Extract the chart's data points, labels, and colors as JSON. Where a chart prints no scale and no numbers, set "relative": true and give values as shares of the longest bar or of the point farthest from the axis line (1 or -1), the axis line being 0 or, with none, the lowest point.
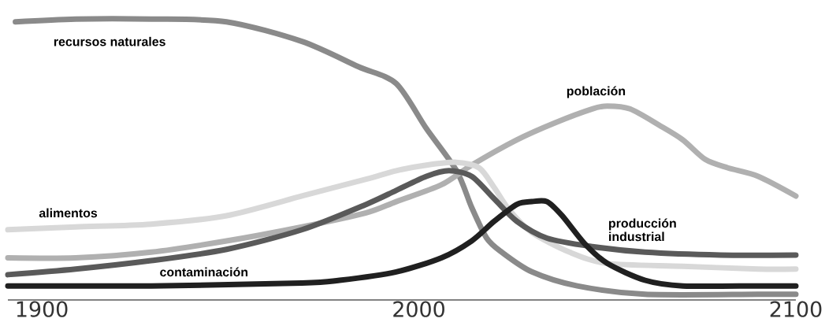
{
  "chart_data": {
    "type": "line",
    "relative": true,
    "xlim": [
      1891,
      2100
    ],
    "xticks": [
      1900,
      2000,
      2100
    ],
    "series": [
      {
        "name": "recursos naturales",
        "color": "#8a8a8a",
        "x": [
          1893,
          1909,
          1929,
          1949,
          1969,
          1984,
          1994,
          2002,
          2010,
          2014,
          2018,
          2022,
          2030,
          2042,
          2060,
          2090,
          2100
        ],
        "values": [
          0.99,
          1.0,
          1.0,
          0.99,
          0.92,
          0.83,
          0.77,
          0.61,
          0.46,
          0.33,
          0.22,
          0.17,
          0.1,
          0.05,
          0.02,
          0.02,
          0.02
        ]
      },
      {
        "name": "población",
        "color": "#b0b0b0",
        "x": [
          1891,
          1909,
          1929,
          1949,
          1969,
          1986,
          1994,
          2006,
          2014,
          2026,
          2036,
          2046,
          2050,
          2056,
          2064,
          2070,
          2076,
          2082,
          2090,
          2100
        ],
        "values": [
          0.15,
          0.15,
          0.17,
          0.21,
          0.26,
          0.31,
          0.35,
          0.41,
          0.48,
          0.57,
          0.63,
          0.68,
          0.69,
          0.68,
          0.62,
          0.57,
          0.5,
          0.47,
          0.44,
          0.37
        ]
      },
      {
        "name": "alimentos",
        "color": "#d8d8d8",
        "x": [
          1891,
          1909,
          1929,
          1949,
          1969,
          1986,
          1994,
          2002,
          2010,
          2016,
          2020,
          2024,
          2030,
          2040,
          2050,
          2070,
          2090,
          2100
        ],
        "values": [
          0.25,
          0.26,
          0.27,
          0.3,
          0.37,
          0.43,
          0.46,
          0.48,
          0.49,
          0.47,
          0.4,
          0.32,
          0.24,
          0.17,
          0.13,
          0.12,
          0.11,
          0.11
        ]
      },
      {
        "name": "producción industrial",
        "color": "#5a5a5a",
        "x": [
          1891,
          1909,
          1929,
          1949,
          1969,
          1986,
          1994,
          2002,
          2008,
          2014,
          2020,
          2026,
          2034,
          2046,
          2060,
          2080,
          2100
        ],
        "values": [
          0.09,
          0.11,
          0.14,
          0.18,
          0.25,
          0.34,
          0.39,
          0.44,
          0.46,
          0.44,
          0.36,
          0.28,
          0.22,
          0.19,
          0.17,
          0.16,
          0.16
        ]
      },
      {
        "name": "contaminación",
        "color": "#202020",
        "x": [
          1891,
          1929,
          1969,
          1979,
          1994,
          2006,
          2014,
          2020,
          2026,
          2030,
          2034,
          2038,
          2044,
          2050,
          2060,
          2070,
          2090,
          2100
        ],
        "values": [
          0.05,
          0.05,
          0.06,
          0.07,
          0.1,
          0.15,
          0.21,
          0.28,
          0.34,
          0.35,
          0.35,
          0.3,
          0.2,
          0.13,
          0.07,
          0.05,
          0.05,
          0.05
        ]
      }
    ]
  }
}
